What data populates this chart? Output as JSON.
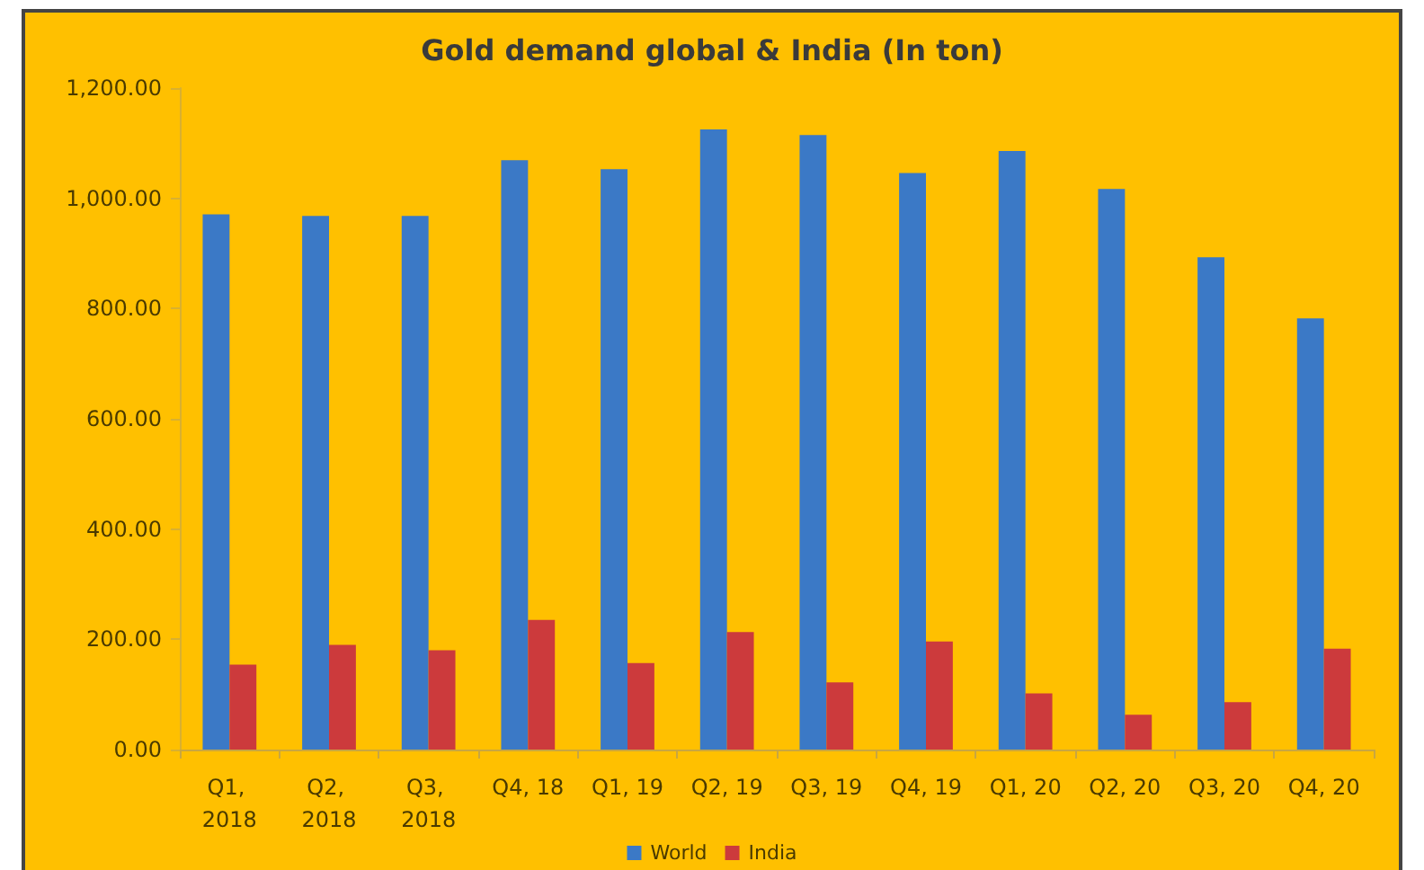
{
  "chart_data": {
    "type": "bar",
    "title": "Gold demand global & India (In ton)",
    "categories": [
      "Q1, 2018",
      "Q2, 2018",
      "Q3, 2018",
      "Q4, 18",
      "Q1, 19",
      "Q2, 19",
      "Q3, 19",
      "Q4, 19",
      "Q1, 20",
      "Q2, 20",
      "Q3, 20",
      "Q4, 20"
    ],
    "series": [
      {
        "name": "World",
        "color": "#3b79c6",
        "values": [
          971,
          968,
          968,
          1069,
          1053,
          1125,
          1115,
          1046,
          1086,
          1017,
          893,
          782
        ]
      },
      {
        "name": "India",
        "color": "#cc3a3c",
        "values": [
          154,
          190,
          180,
          235,
          157,
          213,
          122,
          196,
          102,
          63,
          86,
          183
        ]
      }
    ],
    "ylim": [
      0,
      1200
    ],
    "yticks": [
      {
        "value": 0,
        "label": "0.00"
      },
      {
        "value": 200,
        "label": "200.00"
      },
      {
        "value": 400,
        "label": "400.00"
      },
      {
        "value": 600,
        "label": "600.00"
      },
      {
        "value": 800,
        "label": "800.00"
      },
      {
        "value": 1000,
        "label": "1,000.00"
      },
      {
        "value": 1200,
        "label": "1,200.00"
      }
    ],
    "grid": false,
    "legend": "bottom"
  }
}
